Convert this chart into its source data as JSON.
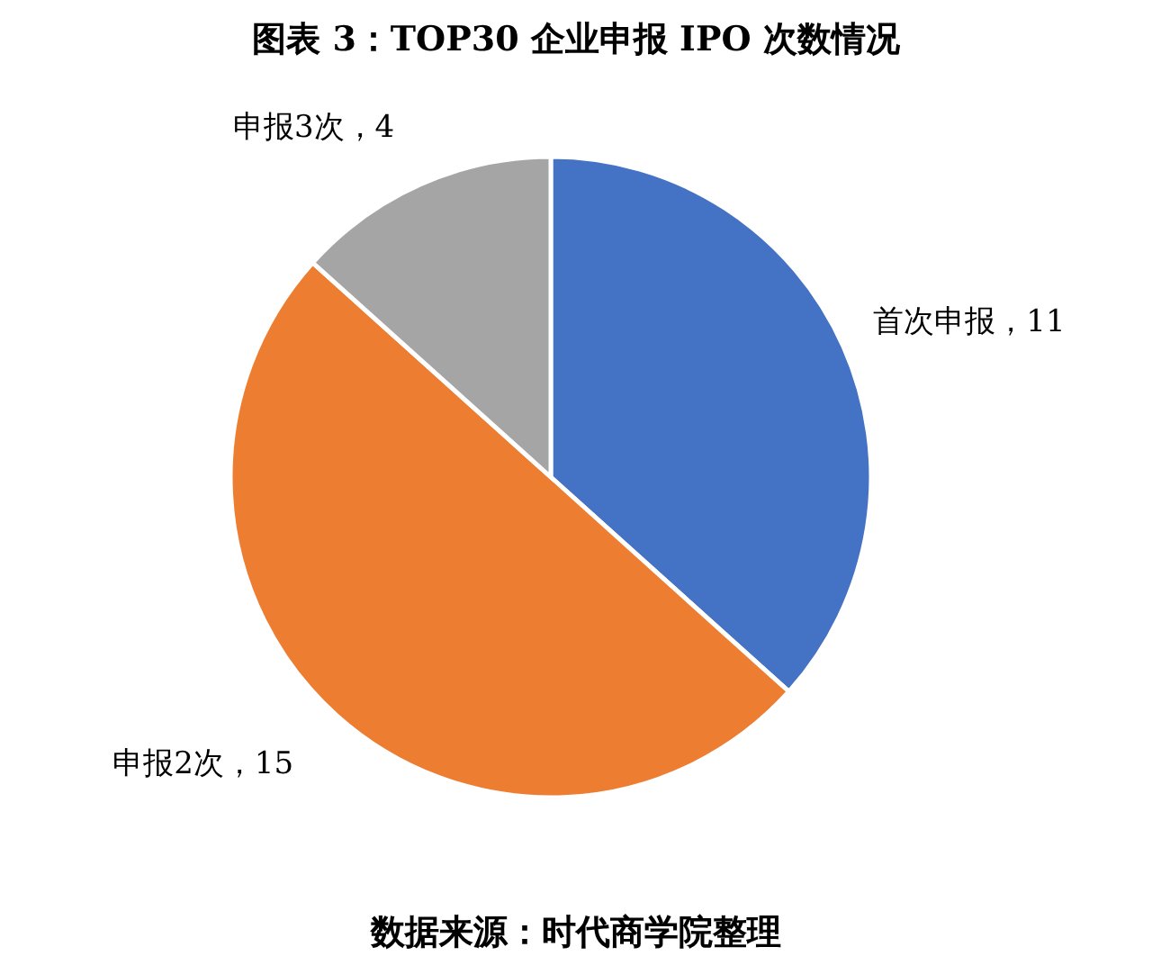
{
  "chart_data": {
    "type": "pie",
    "title": "图表 3：TOP30 企业申报 IPO 次数情况",
    "categories": [
      "首次申报",
      "申报2次",
      "申报3次"
    ],
    "values": [
      11,
      15,
      4
    ],
    "colors": [
      "#4472c4",
      "#ed7d31",
      "#a5a5a5"
    ],
    "value_labels": [
      "，11",
      "，15",
      "，4"
    ],
    "annotations": [
      "数据来源：时代商学院整理"
    ]
  }
}
